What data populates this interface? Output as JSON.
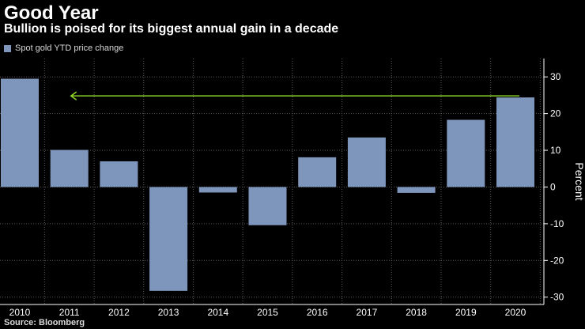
{
  "title": "Good Year",
  "subtitle": "Bullion is poised for its biggest annual gain in a decade",
  "source": "Source: Bloomberg",
  "colors": {
    "bar": "#7f96bc",
    "arrow": "#8fd62b",
    "grid": "#5a5a5a",
    "axis": "#ffffff",
    "background": "#000000"
  },
  "chart_data": {
    "type": "bar",
    "title": "Good Year",
    "subtitle": "Bullion is poised for its biggest annual gain in a decade",
    "categories": [
      "2010",
      "2011",
      "2012",
      "2013",
      "2014",
      "2015",
      "2016",
      "2017",
      "2018",
      "2019",
      "2020"
    ],
    "series": [
      {
        "name": "Spot gold YTD price change",
        "values": [
          29.5,
          10.1,
          7.0,
          -28.3,
          -1.5,
          -10.4,
          8.1,
          13.5,
          -1.6,
          18.3,
          24.4
        ]
      }
    ],
    "xlabel": "",
    "ylabel": "Percent",
    "ylim": [
      -32,
      35
    ],
    "yticks": [
      30,
      20,
      10,
      0,
      -10,
      -20,
      -30
    ],
    "y_axis_side": "right",
    "grid": true,
    "grid_style": "dotted",
    "legend_position": "top-left",
    "annotations": [
      {
        "type": "arrow",
        "from_value": 24.4,
        "from_category": "2020",
        "to_category": "2011",
        "direction": "left"
      }
    ]
  }
}
